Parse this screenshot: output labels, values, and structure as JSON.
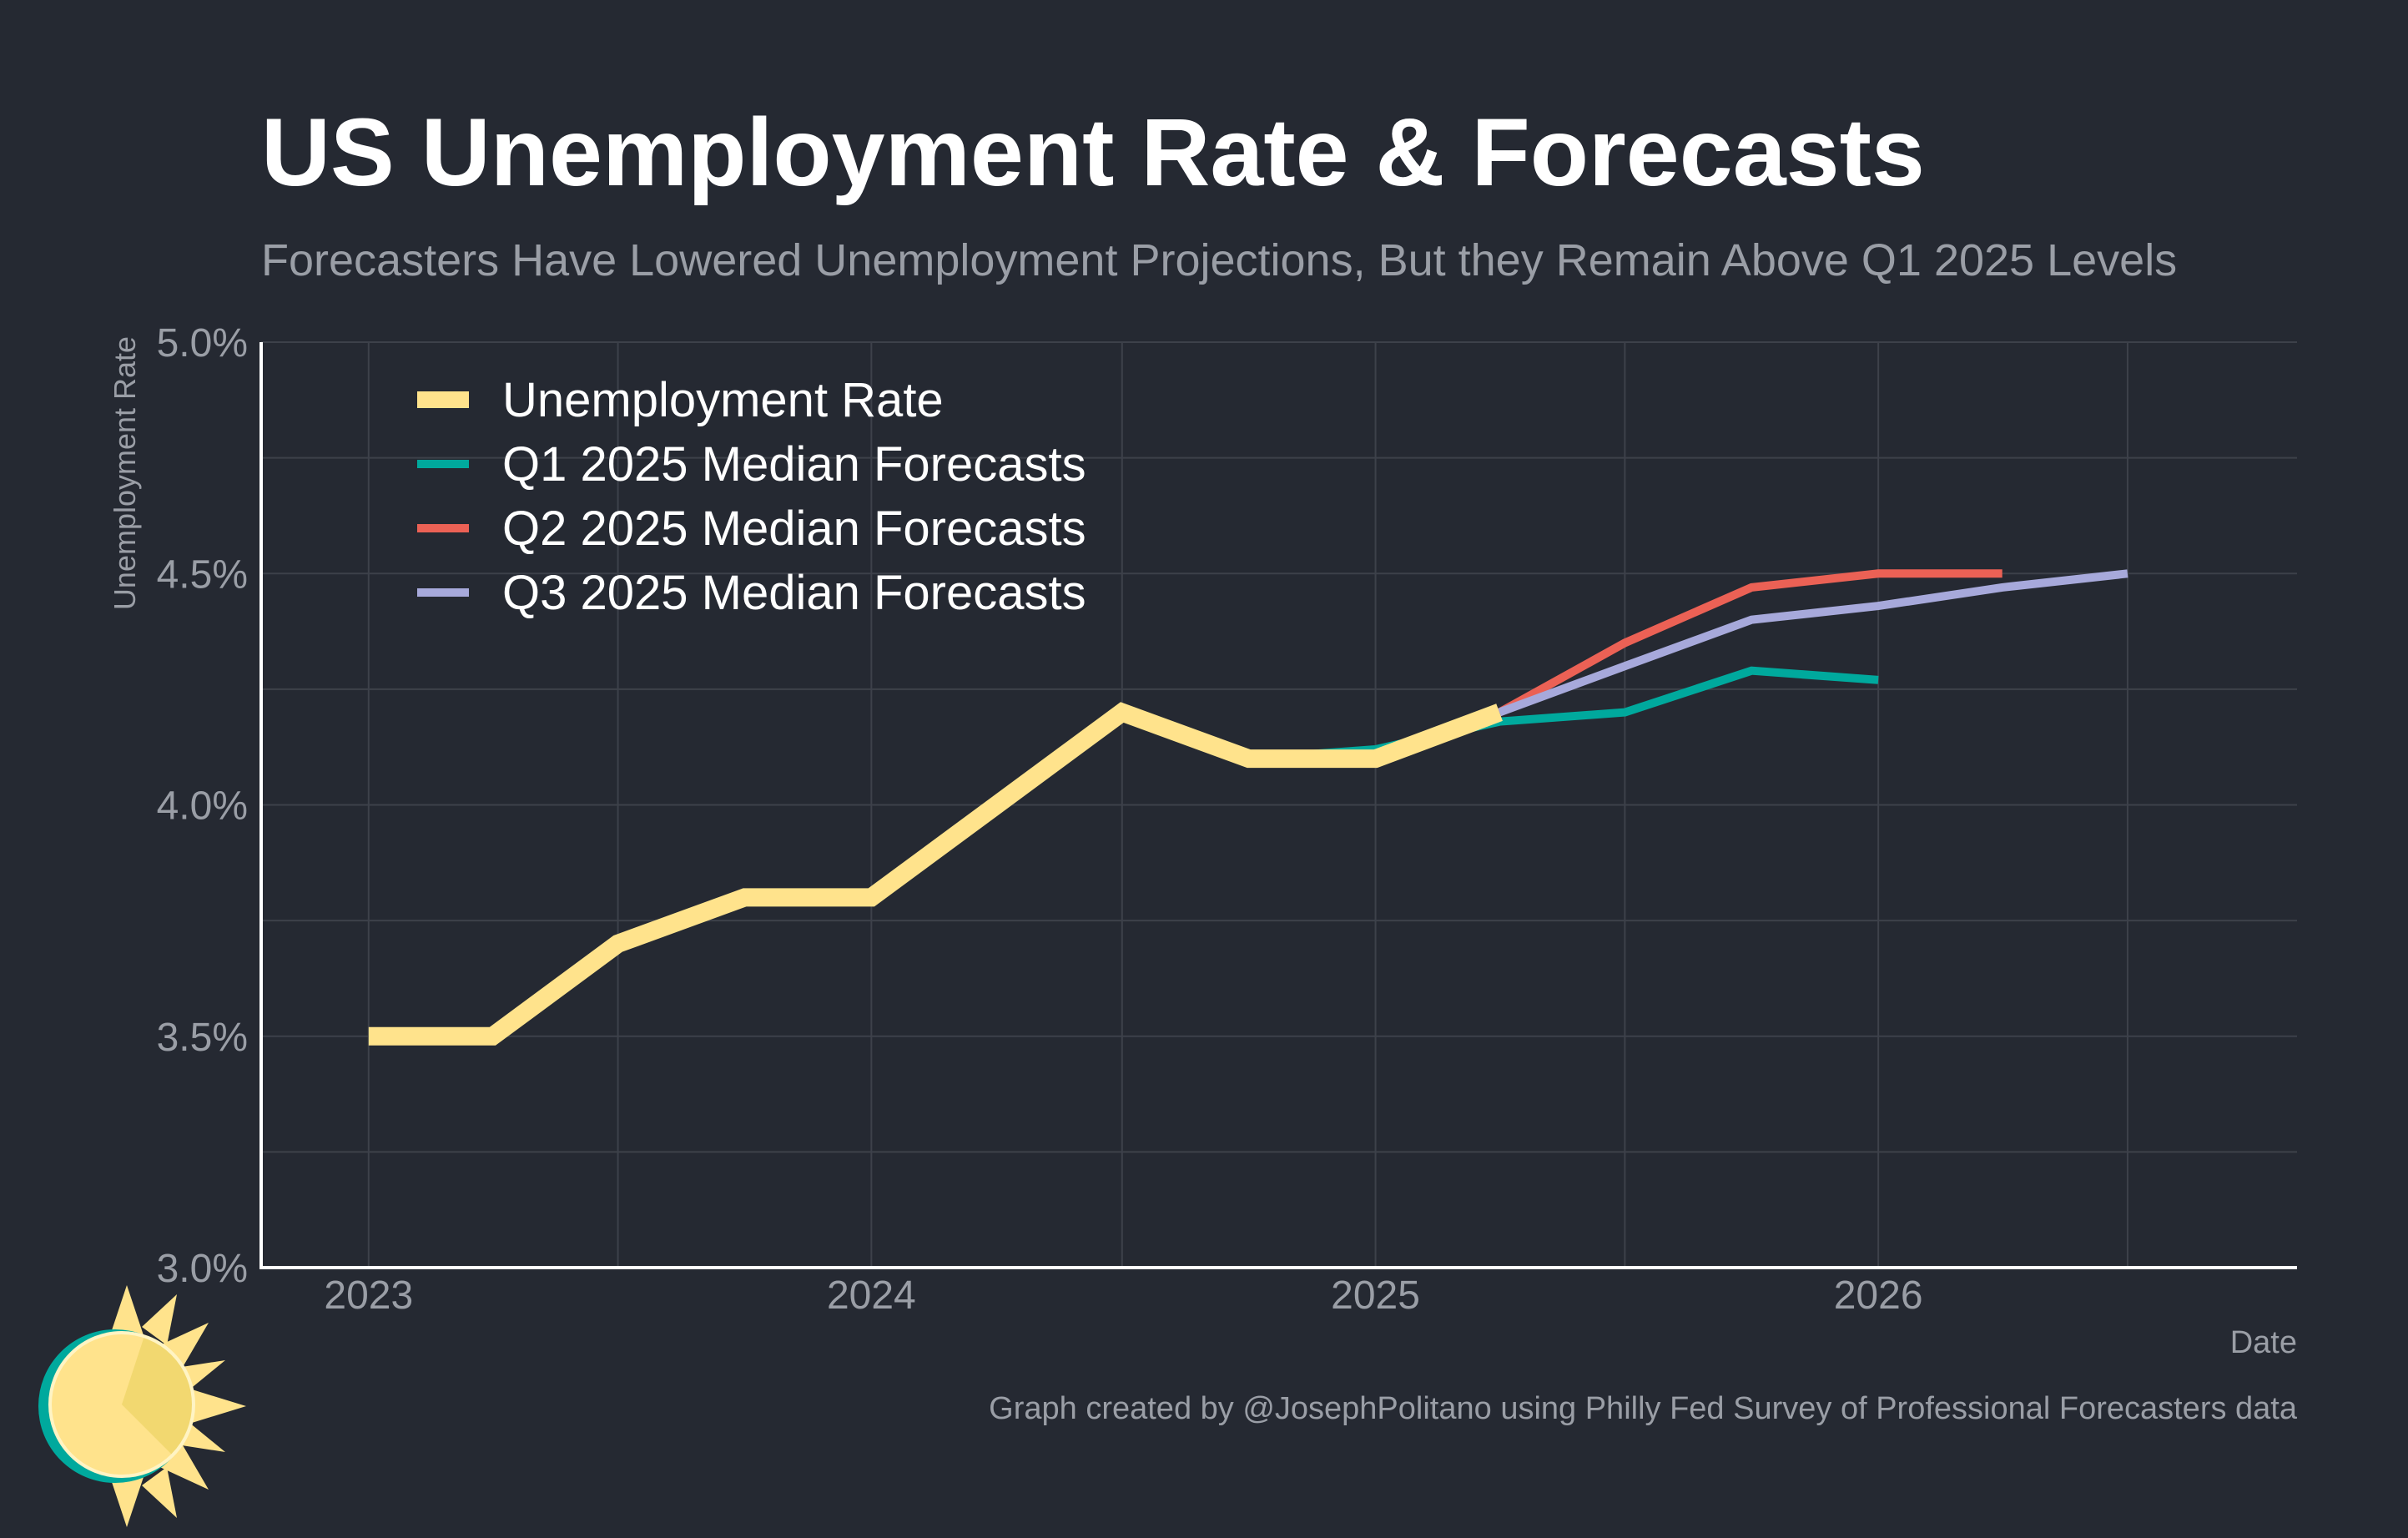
{
  "chart_data": {
    "type": "line",
    "title": "US Unemployment Rate & Forecasts",
    "subtitle": "Forecasters Have Lowered Unemployment Projections, But they Remain Above Q1 2025 Levels",
    "xlabel": "Date",
    "ylabel": "Unemployment Rate",
    "ylim": [
      3.0,
      5.0
    ],
    "xlim": [
      "2022-10-15",
      "2026-11-01"
    ],
    "y_ticks": [
      3.0,
      3.5,
      4.0,
      4.5,
      5.0
    ],
    "y_tick_labels": [
      "3.0%",
      "3.5%",
      "4.0%",
      "4.5%",
      "5.0%"
    ],
    "x_tick_labels": [
      "2023",
      "2024",
      "2025",
      "2026"
    ],
    "x_tick_dates": [
      "2023-01-01",
      "2024-01-01",
      "2025-01-01",
      "2026-01-01"
    ],
    "grid": true,
    "legend_position": "top-left",
    "series": [
      {
        "name": "Unemployment Rate",
        "color": "#FFE38C",
        "x": [
          "2023-01-01",
          "2023-04-01",
          "2023-07-01",
          "2023-10-01",
          "2024-01-01",
          "2024-04-01",
          "2024-07-01",
          "2024-10-01",
          "2025-01-01",
          "2025-04-01"
        ],
        "y": [
          3.5,
          3.5,
          3.7,
          3.8,
          3.8,
          4.0,
          4.2,
          4.1,
          4.1,
          4.2
        ]
      },
      {
        "name": "Q1 2025 Median Forecasts",
        "color": "#00A99D",
        "x": [
          "2024-10-01",
          "2025-01-01",
          "2025-04-01",
          "2025-07-01",
          "2025-10-01",
          "2026-01-01"
        ],
        "y": [
          4.1,
          4.12,
          4.18,
          4.2,
          4.29,
          4.27
        ]
      },
      {
        "name": "Q2 2025 Median Forecasts",
        "color": "#EB6155",
        "x": [
          "2025-04-01",
          "2025-07-01",
          "2025-10-01",
          "2026-01-01",
          "2026-04-01"
        ],
        "y": [
          4.2,
          4.35,
          4.47,
          4.5,
          4.5
        ]
      },
      {
        "name": "Q3 2025 Median Forecasts",
        "color": "#A7A9DB",
        "x": [
          "2025-04-01",
          "2025-07-01",
          "2025-10-01",
          "2026-01-01",
          "2026-04-01",
          "2026-07-01"
        ],
        "y": [
          4.2,
          4.3,
          4.4,
          4.43,
          4.47,
          4.5
        ]
      }
    ]
  },
  "credit": "Graph created by @JosephPolitano using Philly Fed Survey of Professional Forecasters data",
  "colors": {
    "background": "#252932",
    "grid": "#3d414a",
    "axis": "#ffffff",
    "muted_text": "#9a9ea6",
    "logo_teal": "#00A99D",
    "logo_sun": "#FFE38C",
    "logo_sun_shade": "#F2D870"
  },
  "logo": {
    "icon": "sun-logo-icon"
  }
}
